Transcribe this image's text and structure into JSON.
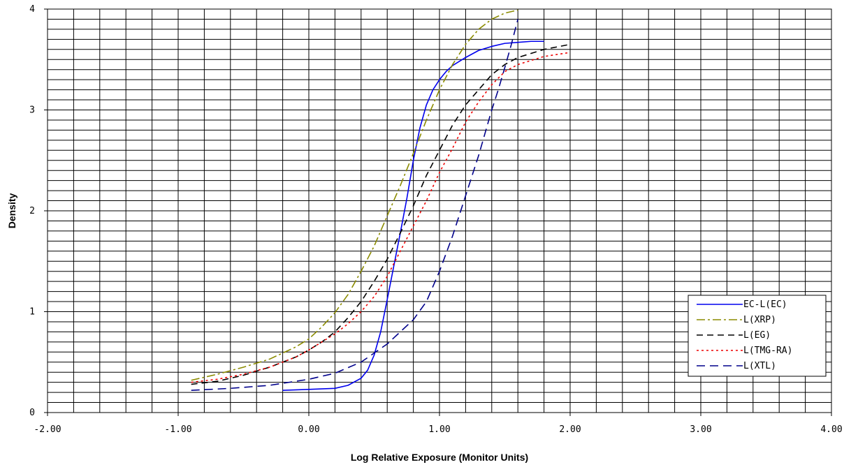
{
  "chart_data": {
    "type": "line",
    "title": "",
    "xlabel": "Log Relative Exposure (Monitor Units)",
    "ylabel": "Density",
    "xlim": [
      -2.0,
      4.0
    ],
    "ylim": [
      0,
      4
    ],
    "x_ticks": [
      "-2.00",
      "-1.00",
      "0.00",
      "1.00",
      "2.00",
      "3.00",
      "4.00"
    ],
    "y_ticks": [
      "0",
      "1",
      "2",
      "3",
      "4"
    ],
    "grid": true,
    "legend_position": "bottom-right",
    "series": [
      {
        "name": "EC-L(EC)",
        "color": "#0000ee",
        "dash": "solid",
        "points": [
          [
            -0.2,
            0.22
          ],
          [
            0.0,
            0.23
          ],
          [
            0.2,
            0.24
          ],
          [
            0.3,
            0.27
          ],
          [
            0.4,
            0.34
          ],
          [
            0.45,
            0.42
          ],
          [
            0.5,
            0.57
          ],
          [
            0.55,
            0.8
          ],
          [
            0.6,
            1.12
          ],
          [
            0.65,
            1.45
          ],
          [
            0.7,
            1.78
          ],
          [
            0.75,
            2.12
          ],
          [
            0.8,
            2.5
          ],
          [
            0.85,
            2.82
          ],
          [
            0.9,
            3.05
          ],
          [
            0.95,
            3.2
          ],
          [
            1.0,
            3.3
          ],
          [
            1.05,
            3.38
          ],
          [
            1.1,
            3.44
          ],
          [
            1.2,
            3.52
          ],
          [
            1.3,
            3.59
          ],
          [
            1.4,
            3.63
          ],
          [
            1.5,
            3.66
          ],
          [
            1.6,
            3.67
          ],
          [
            1.7,
            3.68
          ],
          [
            1.8,
            3.68
          ]
        ]
      },
      {
        "name": "L(XRP)",
        "color": "#8b8b00",
        "dash": "dashdot",
        "points": [
          [
            -0.9,
            0.32
          ],
          [
            -0.7,
            0.38
          ],
          [
            -0.5,
            0.45
          ],
          [
            -0.3,
            0.53
          ],
          [
            -0.1,
            0.65
          ],
          [
            0.0,
            0.73
          ],
          [
            0.1,
            0.85
          ],
          [
            0.2,
            0.99
          ],
          [
            0.3,
            1.17
          ],
          [
            0.4,
            1.4
          ],
          [
            0.5,
            1.65
          ],
          [
            0.6,
            1.95
          ],
          [
            0.7,
            2.25
          ],
          [
            0.8,
            2.57
          ],
          [
            0.9,
            2.9
          ],
          [
            1.0,
            3.2
          ],
          [
            1.1,
            3.45
          ],
          [
            1.2,
            3.65
          ],
          [
            1.3,
            3.8
          ],
          [
            1.4,
            3.9
          ],
          [
            1.5,
            3.96
          ],
          [
            1.6,
            3.99
          ]
        ]
      },
      {
        "name": "L(EG)",
        "color": "#000000",
        "dash": "dashed",
        "points": [
          [
            -0.9,
            0.28
          ],
          [
            -0.7,
            0.31
          ],
          [
            -0.5,
            0.37
          ],
          [
            -0.3,
            0.45
          ],
          [
            -0.1,
            0.55
          ],
          [
            0.0,
            0.62
          ],
          [
            0.1,
            0.7
          ],
          [
            0.2,
            0.8
          ],
          [
            0.3,
            0.94
          ],
          [
            0.4,
            1.1
          ],
          [
            0.5,
            1.3
          ],
          [
            0.6,
            1.52
          ],
          [
            0.7,
            1.78
          ],
          [
            0.8,
            2.05
          ],
          [
            0.9,
            2.35
          ],
          [
            1.0,
            2.6
          ],
          [
            1.1,
            2.85
          ],
          [
            1.2,
            3.05
          ],
          [
            1.3,
            3.2
          ],
          [
            1.4,
            3.35
          ],
          [
            1.5,
            3.45
          ],
          [
            1.6,
            3.52
          ],
          [
            1.8,
            3.6
          ],
          [
            2.0,
            3.65
          ]
        ]
      },
      {
        "name": "L(TMG-RA)",
        "color": "#ee0000",
        "dash": "dotted",
        "points": [
          [
            -0.9,
            0.3
          ],
          [
            -0.7,
            0.33
          ],
          [
            -0.5,
            0.38
          ],
          [
            -0.3,
            0.45
          ],
          [
            -0.1,
            0.55
          ],
          [
            0.0,
            0.62
          ],
          [
            0.1,
            0.7
          ],
          [
            0.2,
            0.78
          ],
          [
            0.3,
            0.88
          ],
          [
            0.4,
            1.0
          ],
          [
            0.5,
            1.15
          ],
          [
            0.6,
            1.35
          ],
          [
            0.7,
            1.6
          ],
          [
            0.8,
            1.85
          ],
          [
            0.9,
            2.1
          ],
          [
            1.0,
            2.38
          ],
          [
            1.1,
            2.62
          ],
          [
            1.2,
            2.88
          ],
          [
            1.3,
            3.08
          ],
          [
            1.4,
            3.25
          ],
          [
            1.5,
            3.38
          ],
          [
            1.6,
            3.45
          ],
          [
            1.8,
            3.53
          ],
          [
            2.0,
            3.57
          ]
        ]
      },
      {
        "name": "L(XTL)",
        "color": "#00008b",
        "dash": "longdash",
        "points": [
          [
            -0.9,
            0.22
          ],
          [
            -0.6,
            0.24
          ],
          [
            -0.3,
            0.27
          ],
          [
            0.0,
            0.33
          ],
          [
            0.2,
            0.39
          ],
          [
            0.4,
            0.5
          ],
          [
            0.6,
            0.68
          ],
          [
            0.8,
            0.92
          ],
          [
            0.9,
            1.1
          ],
          [
            1.0,
            1.4
          ],
          [
            1.1,
            1.75
          ],
          [
            1.2,
            2.15
          ],
          [
            1.3,
            2.55
          ],
          [
            1.4,
            3.0
          ],
          [
            1.45,
            3.2
          ],
          [
            1.5,
            3.42
          ],
          [
            1.55,
            3.65
          ],
          [
            1.6,
            3.9
          ]
        ]
      }
    ]
  }
}
